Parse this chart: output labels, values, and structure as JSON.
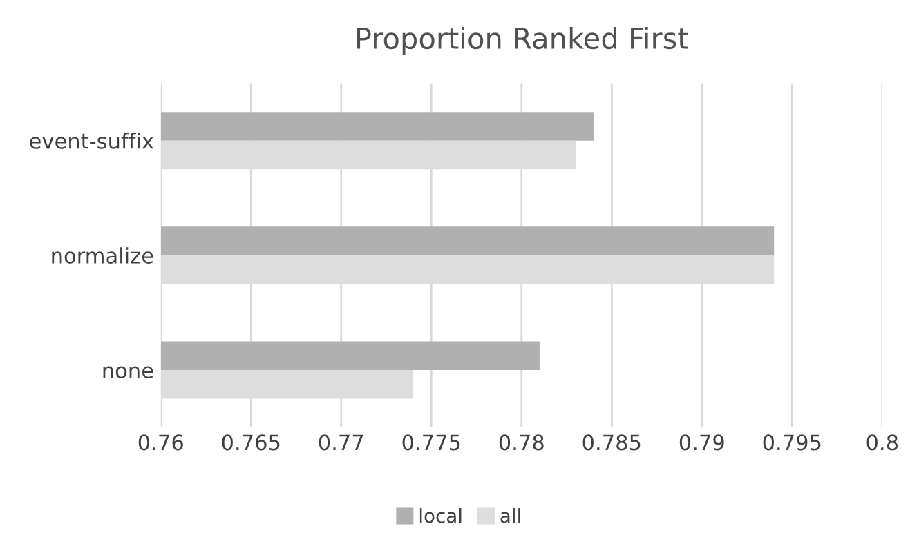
{
  "chart_data": {
    "type": "bar",
    "orientation": "horizontal",
    "title": "Proportion Ranked First",
    "categories": [
      "event-suffix",
      "normalize",
      "none"
    ],
    "series": [
      {
        "name": "local",
        "color": "#b0b0b0",
        "values": [
          0.784,
          0.794,
          0.781
        ]
      },
      {
        "name": "all",
        "color": "#dddddd",
        "values": [
          0.783,
          0.794,
          0.774
        ]
      }
    ],
    "xlim": [
      0.76,
      0.8
    ],
    "xticks": [
      0.76,
      0.765,
      0.77,
      0.775,
      0.78,
      0.785,
      0.79,
      0.795,
      0.8
    ],
    "grid": "x",
    "legend": "bottom"
  }
}
